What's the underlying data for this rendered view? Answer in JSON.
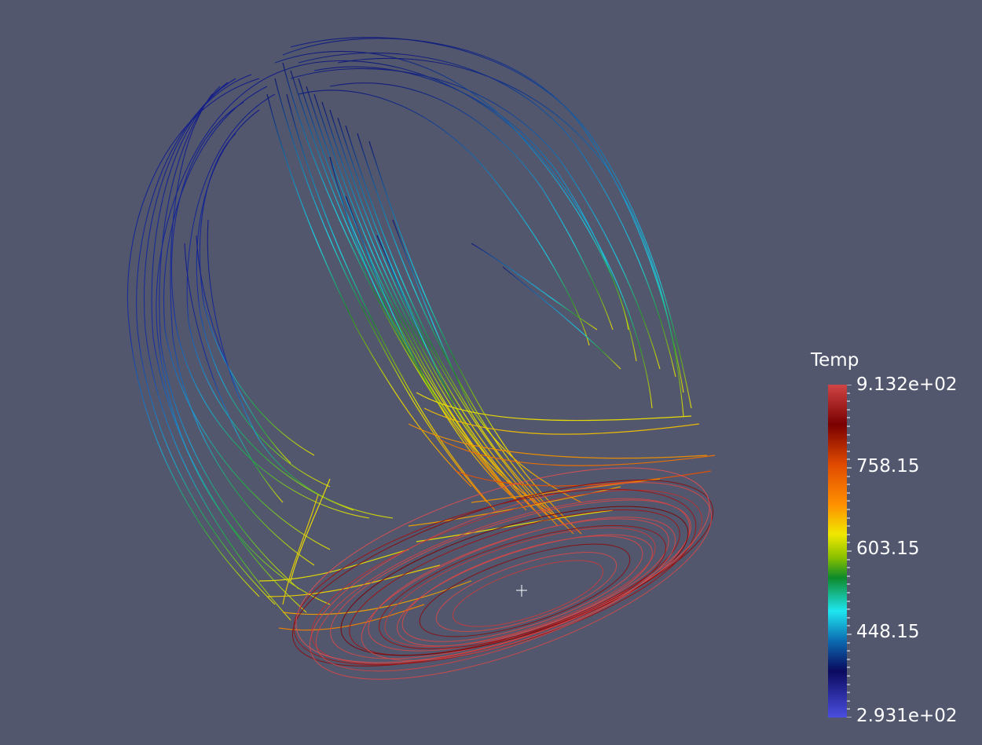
{
  "scalar_bar": {
    "title": "Temp",
    "labels": [
      "9.132e+02",
      "758.15",
      "603.15",
      "448.15",
      "2.931e+02"
    ],
    "colormap": [
      "#4b4ee0",
      "#0a0a6e",
      "#0c4aa0",
      "#1ee6f0",
      "#0e8a2a",
      "#e8e800",
      "#ff8800",
      "#e04a00",
      "#7a0000",
      "#d04545"
    ]
  },
  "colors": {
    "background": "#52576e",
    "streamline_cold": "#0c1a80",
    "streamline_cyan": "#18d4e6",
    "streamline_green": "#1e9a2a",
    "streamline_yellow": "#e8e800",
    "streamline_orange": "#f08000",
    "streamline_red": "#d84848",
    "streamline_dark_red": "#8a0a0a"
  }
}
